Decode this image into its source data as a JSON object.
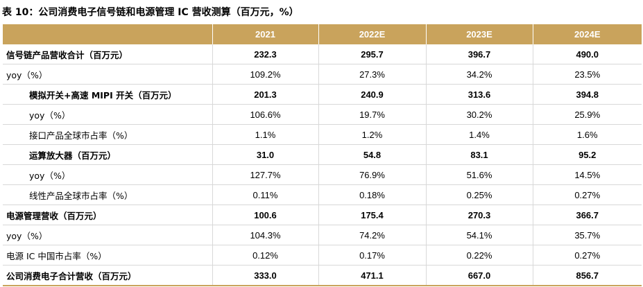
{
  "title": "表 10：公司消费电子信号链和电源管理 IC 营收测算（百万元，%）",
  "columns": [
    "",
    "2021",
    "2022E",
    "2023E",
    "2024E"
  ],
  "rows": [
    {
      "label": "信号链产品营收合计（百万元）",
      "values": [
        "232.3",
        "295.7",
        "396.7",
        "490.0"
      ],
      "bold": true,
      "indent": 0
    },
    {
      "label": "yoy（%）",
      "values": [
        "109.2%",
        "27.3%",
        "34.2%",
        "23.5%"
      ],
      "bold": false,
      "indent": 0
    },
    {
      "label": "模拟开关+高速 MIPI 开关（百万元）",
      "values": [
        "201.3",
        "240.9",
        "313.6",
        "394.8"
      ],
      "bold": true,
      "indent": 1
    },
    {
      "label": "yoy（%）",
      "values": [
        "106.6%",
        "19.7%",
        "30.2%",
        "25.9%"
      ],
      "bold": false,
      "indent": 1
    },
    {
      "label": "接口产品全球市占率（%）",
      "values": [
        "1.1%",
        "1.2%",
        "1.4%",
        "1.6%"
      ],
      "bold": false,
      "indent": 1
    },
    {
      "label": "运算放大器（百万元）",
      "values": [
        "31.0",
        "54.8",
        "83.1",
        "95.2"
      ],
      "bold": true,
      "indent": 1
    },
    {
      "label": "yoy（%）",
      "values": [
        "127.7%",
        "76.9%",
        "51.6%",
        "14.5%"
      ],
      "bold": false,
      "indent": 1
    },
    {
      "label": "线性产品全球市占率（%）",
      "values": [
        "0.11%",
        "0.18%",
        "0.25%",
        "0.27%"
      ],
      "bold": false,
      "indent": 1
    },
    {
      "label": "电源管理营收（百万元）",
      "values": [
        "100.6",
        "175.4",
        "270.3",
        "366.7"
      ],
      "bold": true,
      "indent": 0
    },
    {
      "label": "yoy（%）",
      "values": [
        "104.3%",
        "74.2%",
        "54.1%",
        "35.7%"
      ],
      "bold": false,
      "indent": 0
    },
    {
      "label": "电源 IC 中国市占率（%）",
      "values": [
        "0.12%",
        "0.17%",
        "0.22%",
        "0.27%"
      ],
      "bold": false,
      "indent": 0
    },
    {
      "label": "公司消费电子合计营收（百万元）",
      "values": [
        "333.0",
        "471.1",
        "667.0",
        "856.7"
      ],
      "bold": true,
      "indent": 0
    }
  ]
}
